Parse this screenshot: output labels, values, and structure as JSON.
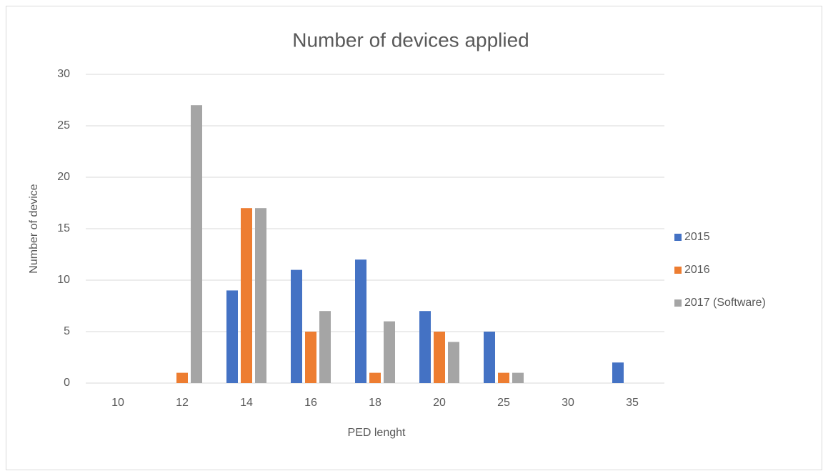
{
  "chart_data": {
    "type": "bar",
    "title": "Number of devices applied",
    "x_label": "PED lenght",
    "y_label": "Number of device",
    "categories": [
      "10",
      "12",
      "14",
      "16",
      "18",
      "20",
      "25",
      "30",
      "35"
    ],
    "series": [
      {
        "name": "2015",
        "color": "#4472c4",
        "values": [
          0,
          0,
          9,
          11,
          12,
          7,
          5,
          0,
          2
        ]
      },
      {
        "name": "2016",
        "color": "#ed7d31",
        "values": [
          0,
          1,
          17,
          5,
          1,
          5,
          1,
          0,
          0
        ]
      },
      {
        "name": "2017 (Software)",
        "color": "#a5a5a5",
        "values": [
          0,
          27,
          17,
          7,
          6,
          4,
          1,
          0,
          0
        ]
      }
    ],
    "ylim": [
      0,
      30
    ],
    "yticks": [
      0,
      5,
      10,
      15,
      20,
      25,
      30
    ],
    "grid": true,
    "legend": "right"
  }
}
